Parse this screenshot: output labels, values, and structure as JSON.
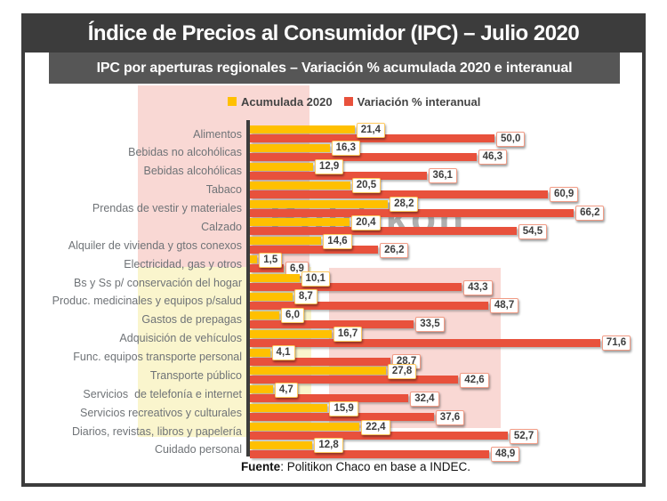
{
  "header": {
    "title": "Índice de Precios al Consumidor (IPC) – Julio 2020",
    "subtitle": "IPC por aperturas regionales – Variación % acumulada 2020 e interanual"
  },
  "legend": {
    "items": [
      {
        "label": "Acumulada 2020",
        "color": "#FFC000"
      },
      {
        "label": "Variación % interanual",
        "color": "#E8513C"
      }
    ]
  },
  "watermark": "Politikon",
  "footer": {
    "bold": "Fuente",
    "rest": ": Politikon Chaco en base a INDEC."
  },
  "colors": {
    "header_bg": "#3C3C3C",
    "subtitle_bg": "#565656",
    "bar_acumulada": "#FFC000",
    "bar_interanual": "#E8513C",
    "acumulada_box_border": "#FFC95E",
    "interanual_box_border": "#F19B85",
    "highlight_pink": "#F9D8D4",
    "highlight_yellow": "#FAF5CD",
    "category_label": "#6F7377"
  },
  "chart_data": {
    "type": "bar",
    "orientation": "horizontal",
    "title": "IPC por aperturas regionales – Variación % acumulada 2020 e interanual",
    "xlabel": "",
    "ylabel": "",
    "xlim": [
      0,
      80
    ],
    "grid": false,
    "legend_position": "top",
    "value_labels": "boxed, comma-decimal format",
    "categories": [
      "Alimentos",
      "Bebidas no alcohólicas",
      "Bebidas alcohólicas",
      "Tabaco",
      "Prendas de vestir y materiales",
      "Calzado",
      "Alquiler de vivienda y gtos conexos",
      "Electricidad, gas y otros",
      "Bs y Ss p/ conservación del hogar",
      "Produc. medicinales y equipos p/salud",
      "Gastos de prepagas",
      "Adquisición de vehículos",
      "Func. equipos transporte personal",
      "Transporte público",
      "Servicios  de telefonía e internet",
      "Servicios recreativos y culturales",
      "Diarios, revistas, libros y papelería",
      "Cuidado personal"
    ],
    "series": [
      {
        "name": "Acumulada 2020",
        "color": "#FFC000",
        "values": [
          21.4,
          16.3,
          12.9,
          20.5,
          28.2,
          20.4,
          14.6,
          1.5,
          10.1,
          8.7,
          6.0,
          16.7,
          4.1,
          27.8,
          4.7,
          15.9,
          22.4,
          12.8
        ],
        "labels": [
          "21,4",
          "16,3",
          "12,9",
          "20,5",
          "28,2",
          "20,4",
          "14,6",
          "1,5",
          "10,1",
          "8,7",
          "6,0",
          "16,7",
          "4,1",
          "27,8",
          "4,7",
          "15,9",
          "22,4",
          "12,8"
        ]
      },
      {
        "name": "Variación % interanual",
        "color": "#E8513C",
        "values": [
          50.0,
          46.3,
          36.1,
          60.9,
          66.2,
          54.5,
          26.2,
          6.9,
          43.3,
          48.7,
          33.5,
          71.6,
          28.7,
          42.6,
          32.4,
          37.6,
          52.7,
          48.9
        ],
        "labels": [
          "50,0",
          "46,3",
          "36,1",
          "60,9",
          "66,2",
          "54,5",
          "26,2",
          "6,9",
          "43,3",
          "48,7",
          "33,5",
          "71,6",
          "28,7",
          "42,6",
          "32,4",
          "37,6",
          "52,7",
          "48,9"
        ]
      }
    ]
  }
}
